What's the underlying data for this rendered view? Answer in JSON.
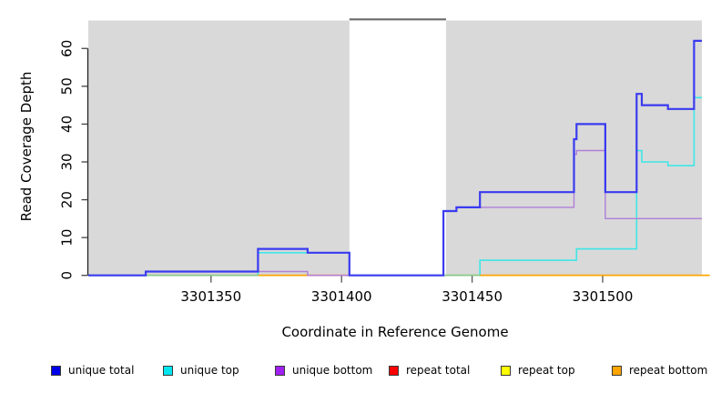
{
  "chart_data": {
    "type": "line",
    "step": true,
    "title": "",
    "xlabel": "Coordinate in Reference Genome",
    "ylabel": "Read Coverage Depth",
    "xlim": [
      3301303,
      3301538
    ],
    "ylim": [
      0,
      67.4
    ],
    "x_ticks": [
      3301350,
      3301400,
      3301450,
      3301500
    ],
    "y_ticks": [
      0,
      10,
      20,
      30,
      40,
      50,
      60
    ],
    "grid": false,
    "plot_background": "#D9D9D9",
    "legend_position": "bottom",
    "masked_region": {
      "from": 3301403,
      "to": 3301440,
      "fill": "#FFFFFF",
      "top_line_color": "#6A6A6A"
    },
    "series": [
      {
        "name": "unique total",
        "color": "#3A3AF0",
        "width": 2.2,
        "end": 3301538,
        "points": [
          [
            3301303,
            0
          ],
          [
            3301325,
            1
          ],
          [
            3301368,
            7
          ],
          [
            3301387,
            6
          ],
          [
            3301403,
            0
          ],
          [
            3301439,
            17
          ],
          [
            3301444,
            18
          ],
          [
            3301453,
            22
          ],
          [
            3301489,
            36
          ],
          [
            3301490,
            40
          ],
          [
            3301501,
            22
          ],
          [
            3301513,
            48
          ],
          [
            3301515,
            45
          ],
          [
            3301525,
            44
          ],
          [
            3301535,
            62
          ]
        ]
      },
      {
        "name": "unique top",
        "color": "#3FE6E6",
        "width": 1.6,
        "end": 3301538,
        "points": [
          [
            3301303,
            0
          ],
          [
            3301368,
            6
          ],
          [
            3301403,
            0
          ],
          [
            3301453,
            4
          ],
          [
            3301490,
            7
          ],
          [
            3301513,
            33
          ],
          [
            3301515,
            30
          ],
          [
            3301525,
            29
          ],
          [
            3301535,
            47
          ]
        ]
      },
      {
        "name": "unique bottom",
        "color": "#AF7FD8",
        "width": 1.4,
        "end": 3301538,
        "points": [
          [
            3301303,
            0
          ],
          [
            3301325,
            1
          ],
          [
            3301387,
            0
          ],
          [
            3301439,
            17
          ],
          [
            3301444,
            18
          ],
          [
            3301489,
            32
          ],
          [
            3301490,
            33
          ],
          [
            3301501,
            15
          ]
        ]
      },
      {
        "name": "repeat total",
        "color": "#E8728C",
        "width": 1.2,
        "end": 3301538,
        "points": [
          [
            3301303,
            0
          ]
        ]
      },
      {
        "name": "repeat top",
        "color": "#EDED70",
        "width": 1.2,
        "end": 3301538,
        "points": [
          [
            3301303,
            0
          ]
        ]
      },
      {
        "name": "repeat bottom",
        "color": "#FFA500",
        "width": 1.6,
        "end": 3301541,
        "points": [
          [
            3301303,
            0
          ]
        ]
      }
    ],
    "baseline_segments": [
      {
        "from": 3301303,
        "to": 3301368,
        "color": "#8CC88C"
      },
      {
        "from": 3301368,
        "to": 3301387,
        "color": "#FFA500"
      },
      {
        "from": 3301387,
        "to": 3301403,
        "color": "#E8728C"
      },
      {
        "from": 3301439,
        "to": 3301453,
        "color": "#8CC88C"
      },
      {
        "from": 3301453,
        "to": 3301541,
        "color": "#FFA500"
      }
    ],
    "legend": [
      {
        "label": "unique total",
        "color": "#0000E8"
      },
      {
        "label": "unique top",
        "color": "#00E5EE"
      },
      {
        "label": "unique bottom",
        "color": "#A020F0"
      },
      {
        "label": "repeat total",
        "color": "#FF0000"
      },
      {
        "label": "repeat top",
        "color": "#FFFF00"
      },
      {
        "label": "repeat bottom",
        "color": "#FFA500"
      }
    ]
  }
}
